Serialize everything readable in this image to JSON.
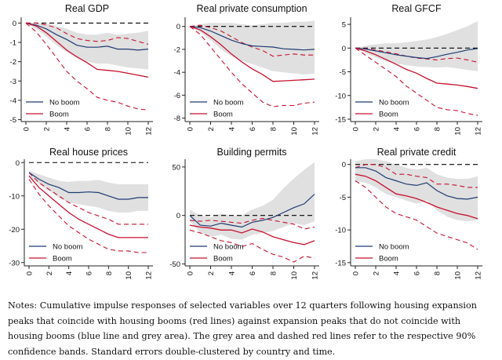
{
  "legend": {
    "no_boom": "No boom",
    "boom": "Boom"
  },
  "colors": {
    "no_boom": "#1f3b73",
    "boom": "#c8102e",
    "band": "#e0e0e0",
    "zero": "#000000"
  },
  "notes": "Notes: Cumulative impulse responses of selected variables over 12 quarters following housing expansion peaks that coincide with housing booms (red lines) against expansion peaks that do not coincide with housing booms (blue line and grey area). The grey area and dashed red lines refer to the respective 90% confidence bands. Standard errors double-clustered by country and time.",
  "chart_data": [
    {
      "type": "line",
      "title": "Real GDP",
      "x": [
        0,
        1,
        2,
        3,
        4,
        5,
        6,
        7,
        8,
        9,
        10,
        11,
        12
      ],
      "xticks": [
        0,
        2,
        4,
        6,
        8,
        10,
        12
      ],
      "ylim": [
        -5.1,
        0.3
      ],
      "yticks": [
        0,
        -1,
        -2,
        -3,
        -4,
        -5
      ],
      "legend_position": "bottom-left",
      "series": [
        {
          "name": "No boom",
          "values": [
            0,
            -0.1,
            -0.3,
            -0.6,
            -0.85,
            -1.15,
            -1.25,
            -1.25,
            -1.2,
            -1.35,
            -1.35,
            -1.4,
            -1.35
          ]
        },
        {
          "name": "Boom",
          "values": [
            0,
            -0.15,
            -0.5,
            -0.95,
            -1.4,
            -1.75,
            -2.05,
            -2.4,
            -2.45,
            -2.5,
            -2.6,
            -2.7,
            -2.8
          ]
        }
      ],
      "no_boom_band": {
        "lower": [
          0,
          -0.3,
          -0.7,
          -1.15,
          -1.5,
          -1.8,
          -2.0,
          -2.1,
          -2.1,
          -2.2,
          -2.3,
          -2.35,
          -2.4
        ],
        "upper": [
          0,
          0,
          0,
          -0.15,
          -0.3,
          -0.5,
          -0.6,
          -0.6,
          -0.5,
          -0.6,
          -0.55,
          -0.5,
          -0.4
        ]
      },
      "boom_band": {
        "lower": [
          0,
          -0.45,
          -1.1,
          -1.8,
          -2.5,
          -3.0,
          -3.4,
          -3.85,
          -4.0,
          -4.1,
          -4.3,
          -4.45,
          -4.5
        ],
        "upper": [
          0,
          0,
          -0.1,
          -0.25,
          -0.55,
          -0.8,
          -0.9,
          -0.95,
          -0.9,
          -0.75,
          -0.8,
          -0.95,
          -1.1
        ]
      }
    },
    {
      "type": "line",
      "title": "Real private consumption",
      "x": [
        0,
        1,
        2,
        3,
        4,
        5,
        6,
        7,
        8,
        9,
        10,
        11,
        12
      ],
      "xticks": [
        0,
        2,
        4,
        6,
        8,
        10,
        12
      ],
      "ylim": [
        -8.3,
        0.8
      ],
      "yticks": [
        0,
        -2,
        -4,
        -6,
        -8
      ],
      "legend_position": "bottom-left",
      "series": [
        {
          "name": "No boom",
          "values": [
            0,
            -0.1,
            -0.4,
            -0.8,
            -1.2,
            -1.5,
            -1.7,
            -1.75,
            -1.8,
            -1.95,
            -2.0,
            -2.05,
            -2.0
          ]
        },
        {
          "name": "Boom",
          "values": [
            0,
            -0.3,
            -0.9,
            -1.6,
            -2.4,
            -3.1,
            -3.7,
            -4.2,
            -4.8,
            -4.75,
            -4.7,
            -4.65,
            -4.6
          ]
        }
      ],
      "no_boom_band": {
        "lower": [
          0,
          -0.5,
          -1.2,
          -2.0,
          -2.6,
          -3.0,
          -3.3,
          -3.6,
          -3.9,
          -4.0,
          -4.1,
          -4.2,
          -4.1
        ],
        "upper": [
          0,
          0.2,
          0.3,
          0.3,
          0.3,
          0.2,
          0.1,
          0.2,
          0.3,
          0.3,
          0.4,
          0.4,
          0.5
        ]
      },
      "boom_band": {
        "lower": [
          0,
          -0.7,
          -1.8,
          -2.9,
          -4.0,
          -5.0,
          -5.8,
          -6.6,
          -7.0,
          -6.9,
          -6.9,
          -6.7,
          -6.6
        ],
        "upper": [
          0,
          0.1,
          -0.1,
          -0.4,
          -0.9,
          -1.4,
          -1.8,
          -2.1,
          -2.6,
          -2.5,
          -2.4,
          -2.5,
          -2.5
        ]
      }
    },
    {
      "type": "line",
      "title": "Real GFCF",
      "x": [
        0,
        1,
        2,
        3,
        4,
        5,
        6,
        7,
        8,
        9,
        10,
        11,
        12
      ],
      "xticks": [
        0,
        2,
        4,
        6,
        8,
        10,
        12
      ],
      "ylim": [
        -15.5,
        6.5
      ],
      "yticks": [
        5,
        0,
        -5,
        -10,
        -15
      ],
      "legend_position": "bottom-left",
      "series": [
        {
          "name": "No boom",
          "values": [
            0,
            -0.2,
            -0.6,
            -1.0,
            -1.4,
            -1.7,
            -2.0,
            -2.2,
            -1.8,
            -1.3,
            -0.9,
            -0.4,
            -0.1
          ]
        },
        {
          "name": "Boom",
          "values": [
            0,
            -0.6,
            -1.4,
            -2.4,
            -3.4,
            -4.5,
            -5.3,
            -6.4,
            -7.4,
            -7.6,
            -7.8,
            -8.1,
            -8.5
          ]
        }
      ],
      "no_boom_band": {
        "lower": [
          0,
          -1.0,
          -2.0,
          -2.8,
          -3.3,
          -3.6,
          -3.9,
          -4.0,
          -4.1,
          -4.0,
          -4.3,
          -4.6,
          -4.9
        ],
        "upper": [
          0,
          0.5,
          0.8,
          1.0,
          1.0,
          1.2,
          1.5,
          1.8,
          2.3,
          3.0,
          3.8,
          4.6,
          5.7
        ]
      },
      "boom_band": {
        "lower": [
          0,
          -1.5,
          -3.0,
          -4.5,
          -6.0,
          -8.0,
          -9.5,
          -11.0,
          -12.5,
          -13.0,
          -13.2,
          -13.8,
          -14.2
        ],
        "upper": [
          0,
          -0.1,
          -0.4,
          -0.8,
          -1.2,
          -1.7,
          -2.1,
          -2.3,
          -2.5,
          -2.2,
          -2.1,
          -2.5,
          -3.0
        ]
      }
    },
    {
      "type": "line",
      "title": "Real house prices",
      "x": [
        0,
        1,
        2,
        3,
        4,
        5,
        6,
        7,
        8,
        9,
        10,
        11,
        12
      ],
      "xticks": [
        0,
        2,
        4,
        6,
        8,
        10,
        12
      ],
      "ylim": [
        -31,
        1
      ],
      "yticks": [
        0,
        -10,
        -20,
        -30
      ],
      "legend_position": "bottom-left",
      "series": [
        {
          "name": "No boom",
          "values": [
            -3,
            -5,
            -6.5,
            -7.5,
            -9,
            -9,
            -8.8,
            -9,
            -10,
            -11,
            -11,
            -10.5,
            -10.5
          ]
        },
        {
          "name": "Boom",
          "values": [
            -4,
            -7.5,
            -10,
            -12.5,
            -15,
            -17,
            -18.5,
            -20,
            -21.5,
            -22.5,
            -22.5,
            -22.5,
            -22.5
          ]
        }
      ],
      "no_boom_band": {
        "lower": [
          -4,
          -6.5,
          -8.5,
          -10.5,
          -12,
          -12.5,
          -13,
          -13.5,
          -14.5,
          -15,
          -15,
          -14.5,
          -14.5
        ],
        "upper": [
          -2.5,
          -3.5,
          -4.5,
          -5.5,
          -5.8,
          -5.5,
          -5.5,
          -5.2,
          -6,
          -6.5,
          -6.5,
          -6.5,
          -6.5
        ]
      },
      "boom_band": {
        "lower": [
          -5,
          -9.5,
          -13,
          -16,
          -19,
          -21,
          -23,
          -24.5,
          -26,
          -26.5,
          -26.5,
          -27,
          -27
        ],
        "upper": [
          -3,
          -6,
          -8,
          -10,
          -12,
          -13.5,
          -15,
          -16,
          -17,
          -18.5,
          -18.5,
          -18.5,
          -18.5
        ]
      }
    },
    {
      "type": "line",
      "title": "Building permits",
      "x": [
        0,
        1,
        2,
        3,
        4,
        5,
        6,
        7,
        8,
        9,
        10,
        11,
        12
      ],
      "xticks": [
        0,
        2,
        4,
        6,
        8,
        10,
        12
      ],
      "ylim": [
        -52,
        58
      ],
      "yticks": [
        50,
        0,
        -50
      ],
      "legend_position": "bottom-left",
      "series": [
        {
          "name": "No boom",
          "values": [
            0,
            -10,
            -11,
            -8,
            -10,
            -12,
            -7,
            -5,
            -2,
            3,
            8,
            12,
            22
          ]
        },
        {
          "name": "Boom",
          "values": [
            -10,
            -12,
            -13,
            -15,
            -15,
            -18,
            -14,
            -17,
            -22,
            -25,
            -28,
            -30,
            -26
          ]
        }
      ],
      "no_boom_band": {
        "lower": [
          -6,
          -18,
          -22,
          -20,
          -24,
          -25,
          -20,
          -18,
          -16,
          -12,
          -8,
          -10,
          -6
        ],
        "upper": [
          6,
          0,
          -2,
          2,
          0,
          0,
          6,
          10,
          16,
          28,
          38,
          47,
          55
        ]
      },
      "boom_band": {
        "lower": [
          -15,
          -18,
          -22,
          -26,
          -28,
          -32,
          -29,
          -35,
          -40,
          -43,
          -48,
          -42,
          -44
        ],
        "upper": [
          -5,
          -6,
          -5,
          -6,
          -7,
          -8,
          -5,
          -3,
          -5,
          -7,
          -9,
          -14,
          -12
        ]
      }
    },
    {
      "type": "line",
      "title": "Real private credit",
      "x": [
        0,
        1,
        2,
        3,
        4,
        5,
        6,
        7,
        8,
        9,
        10,
        11,
        12
      ],
      "xticks": [
        0,
        2,
        4,
        6,
        8,
        10,
        12
      ],
      "ylim": [
        -15.5,
        0.8
      ],
      "yticks": [
        0,
        -5,
        -10,
        -15
      ],
      "legend_position": "bottom-left",
      "series": [
        {
          "name": "No boom",
          "values": [
            -0.5,
            -0.5,
            -1,
            -2,
            -2.5,
            -3,
            -3.2,
            -2.8,
            -4,
            -4.8,
            -5.2,
            -5.3,
            -5
          ]
        },
        {
          "name": "Boom",
          "values": [
            -1.5,
            -1.8,
            -2.5,
            -3.5,
            -4.5,
            -4.8,
            -5.2,
            -5.8,
            -6.5,
            -7,
            -7.5,
            -7.8,
            -8.3
          ]
        }
      ],
      "no_boom_band": {
        "lower": [
          -2.5,
          -2.8,
          -3.5,
          -4.5,
          -5,
          -5.5,
          -6,
          -5.5,
          -7,
          -8,
          -8.5,
          -8.7,
          -8.5
        ],
        "upper": [
          0.5,
          0.8,
          0.8,
          0.5,
          0,
          -0.5,
          -0.8,
          -0.5,
          -1.5,
          -2,
          -2.2,
          -2.2,
          -1.8
        ]
      },
      "boom_band": {
        "lower": [
          -2.5,
          -3.5,
          -5,
          -6.5,
          -7.5,
          -8,
          -8.5,
          -9.5,
          -10.5,
          -11,
          -11.5,
          -12,
          -13
        ]
      },
      "boom_band_upper": [
        -0.5,
        0,
        0,
        -0.5,
        -1.5,
        -1.5,
        -1.8,
        -2,
        -3,
        -3,
        -3.2,
        -3.5,
        -3.5
      ]
    }
  ]
}
